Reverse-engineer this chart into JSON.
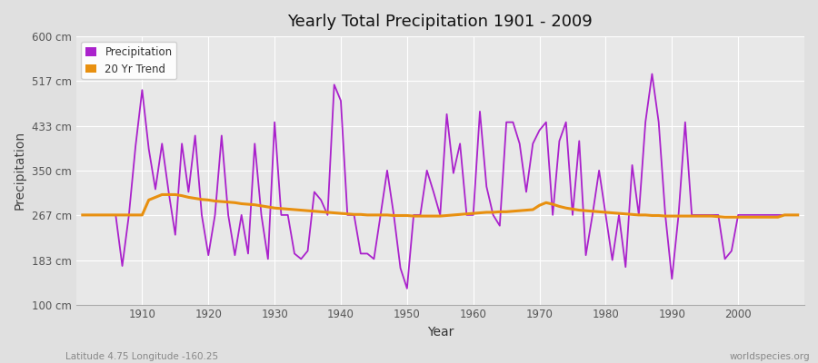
{
  "title": "Yearly Total Precipitation 1901 - 2009",
  "xlabel": "Year",
  "ylabel": "Precipitation",
  "footnote_left": "Latitude 4.75 Longitude -160.25",
  "footnote_right": "worldspecies.org",
  "legend_labels": [
    "Precipitation",
    "20 Yr Trend"
  ],
  "precip_color": "#aa22cc",
  "trend_color": "#e89010",
  "bg_color": "#e0e0e0",
  "plot_bg_color": "#e8e8e8",
  "ylim": [
    100,
    600
  ],
  "yticks": [
    100,
    183,
    267,
    350,
    433,
    517,
    600
  ],
  "ytick_labels": [
    "100 cm",
    "183 cm",
    "267 cm",
    "350 cm",
    "433 cm",
    "517 cm",
    "600 cm"
  ],
  "years": [
    1901,
    1902,
    1903,
    1904,
    1905,
    1906,
    1907,
    1908,
    1909,
    1910,
    1911,
    1912,
    1913,
    1914,
    1915,
    1916,
    1917,
    1918,
    1919,
    1920,
    1921,
    1922,
    1923,
    1924,
    1925,
    1926,
    1927,
    1928,
    1929,
    1930,
    1931,
    1932,
    1933,
    1934,
    1935,
    1936,
    1937,
    1938,
    1939,
    1940,
    1941,
    1942,
    1943,
    1944,
    1945,
    1946,
    1947,
    1948,
    1949,
    1950,
    1951,
    1952,
    1953,
    1954,
    1955,
    1956,
    1957,
    1958,
    1959,
    1960,
    1961,
    1962,
    1963,
    1964,
    1965,
    1966,
    1967,
    1968,
    1969,
    1970,
    1971,
    1972,
    1973,
    1974,
    1975,
    1976,
    1977,
    1978,
    1979,
    1980,
    1981,
    1982,
    1983,
    1984,
    1985,
    1986,
    1987,
    1988,
    1989,
    1990,
    1991,
    1992,
    1993,
    1994,
    1995,
    1996,
    1997,
    1998,
    1999,
    2000,
    2001,
    2002,
    2003,
    2004,
    2005,
    2006,
    2007,
    2008,
    2009
  ],
  "precip": [
    267,
    267,
    267,
    267,
    267,
    267,
    172,
    267,
    395,
    500,
    390,
    315,
    400,
    310,
    230,
    400,
    310,
    415,
    267,
    192,
    267,
    415,
    267,
    192,
    267,
    195,
    400,
    267,
    185,
    440,
    267,
    267,
    195,
    185,
    200,
    310,
    295,
    267,
    510,
    480,
    267,
    267,
    195,
    195,
    185,
    267,
    350,
    267,
    168,
    130,
    267,
    267,
    350,
    310,
    267,
    455,
    345,
    400,
    267,
    267,
    460,
    320,
    267,
    247,
    440,
    440,
    400,
    310,
    400,
    425,
    440,
    267,
    405,
    440,
    267,
    405,
    192,
    267,
    350,
    267,
    183,
    267,
    170,
    360,
    267,
    440,
    530,
    440,
    267,
    148,
    267,
    440,
    267,
    267,
    267,
    267,
    267,
    185,
    200,
    267,
    267,
    267,
    267,
    267,
    267,
    267,
    267,
    267,
    267
  ],
  "trend": [
    267,
    267,
    267,
    267,
    267,
    267,
    267,
    267,
    267,
    267,
    295,
    300,
    305,
    305,
    305,
    303,
    300,
    298,
    296,
    295,
    293,
    292,
    291,
    290,
    288,
    287,
    286,
    284,
    282,
    280,
    279,
    278,
    277,
    276,
    275,
    274,
    273,
    272,
    271,
    270,
    269,
    268,
    268,
    267,
    267,
    267,
    267,
    266,
    266,
    266,
    265,
    265,
    265,
    265,
    265,
    266,
    267,
    268,
    269,
    270,
    271,
    272,
    272,
    273,
    273,
    274,
    275,
    276,
    277,
    285,
    290,
    287,
    283,
    280,
    278,
    276,
    275,
    274,
    273,
    272,
    271,
    270,
    269,
    268,
    267,
    267,
    266,
    266,
    265,
    265,
    265,
    265,
    265,
    265,
    265,
    265,
    264,
    263,
    263,
    263,
    263,
    263,
    263,
    263,
    263,
    263,
    267,
    267,
    267
  ]
}
